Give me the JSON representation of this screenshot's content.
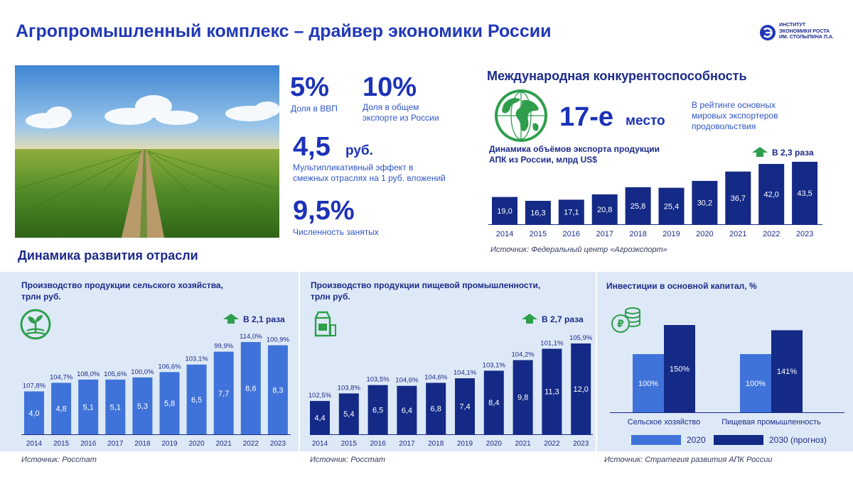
{
  "header": {
    "title": "Агропромышленный комплекс – драйвер экономики России",
    "logo_text": "ИНСТИТУТ\nЭКОНОМИКИ РОСТА\nИМ. СТОЛЫПИНА П.А."
  },
  "kpis": {
    "gdp_share": {
      "value": "5%",
      "caption": "Доля в ВВП"
    },
    "export_share": {
      "value": "10%",
      "caption": "Доля в общем\nэкспорте из России"
    },
    "multiplier": {
      "value": "4,5",
      "unit": "руб.",
      "caption": "Мультипликативный эффект в\nсмежных отраслях на 1 руб. вложений"
    },
    "employment": {
      "value": "9,5%",
      "caption": "Численность занятых"
    }
  },
  "international": {
    "title": "Международная конкурентоспособность",
    "rank_value": "17-е",
    "rank_word": "место",
    "rank_caption": "В рейтинге основных мировых экспортеров продовольствия"
  },
  "section_title": "Динамика развития отрасли",
  "colors": {
    "navy": "#142a86",
    "blue": "#3f73d9",
    "green": "#2e9e4c",
    "title_blue": "#2038b8",
    "panel": "#dde9f6"
  },
  "chart_data": [
    {
      "id": "export",
      "type": "bar",
      "title": "Динамика объёмов экспорта продукции\nАПК из России, млрд US$",
      "categories": [
        "2014",
        "2015",
        "2016",
        "2017",
        "2018",
        "2019",
        "2020",
        "2021",
        "2022",
        "2023"
      ],
      "values": [
        19.0,
        16.3,
        17.1,
        20.8,
        25.8,
        25.4,
        30.2,
        36.7,
        42.0,
        43.5
      ],
      "value_labels": [
        "19,0",
        "16,3",
        "17,1",
        "20,8",
        "25,8",
        "25,4",
        "30,2",
        "36,7",
        "42,0",
        "43,5"
      ],
      "growth_label": "В 2,3 раза",
      "source": "Источник: Федеральный центр «Агроэкспорт»",
      "color": "#142a86"
    },
    {
      "id": "agri",
      "type": "bar",
      "title": "Производство продукции сельского хозяйства,\nтрлн руб.",
      "categories": [
        "2014",
        "2015",
        "2016",
        "2017",
        "2018",
        "2019",
        "2020",
        "2021",
        "2022",
        "2023"
      ],
      "values": [
        4.0,
        4.8,
        5.1,
        5.1,
        5.3,
        5.8,
        6.5,
        7.7,
        8.6,
        8.3
      ],
      "value_labels": [
        "4,0",
        "4,8",
        "5,1",
        "5,1",
        "5,3",
        "5,8",
        "6,5",
        "7,7",
        "8,6",
        "8,3"
      ],
      "index_labels": [
        "107,8%",
        "104,7%",
        "108,0%",
        "105,6%",
        "100,0%",
        "106,6%",
        "103,1%",
        "99,9%",
        "114,0%",
        "100,9%"
      ],
      "growth_label": "В 2,1 раза",
      "source": "Источник: Росстат",
      "color": "#3f73d9"
    },
    {
      "id": "food",
      "type": "bar",
      "title": "Производство продукции пищевой промышленности,\nтрлн руб.",
      "categories": [
        "2014",
        "2015",
        "2016",
        "2017",
        "2018",
        "2019",
        "2020",
        "2021",
        "2022",
        "2023"
      ],
      "values": [
        4.4,
        5.4,
        6.5,
        6.4,
        6.8,
        7.4,
        8.4,
        9.8,
        11.3,
        12.0
      ],
      "value_labels": [
        "4,4",
        "5,4",
        "6,5",
        "6,4",
        "6,8",
        "7,4",
        "8,4",
        "9,8",
        "11,3",
        "12,0"
      ],
      "index_labels": [
        "102,5%",
        "103,8%",
        "103,5%",
        "104,6%",
        "104,6%",
        "104,1%",
        "103,1%",
        "104,2%",
        "101,1%",
        "105,9%"
      ],
      "growth_label": "В 2,7 раза",
      "source": "Источник: Росстат",
      "color": "#142a86"
    },
    {
      "id": "invest",
      "type": "bar",
      "title": "Инвестиции  в основной капитал, %",
      "categories": [
        "Сельское хозяйство",
        "Пищевая промышленность"
      ],
      "series": [
        {
          "name": "2020",
          "values": [
            100,
            100
          ],
          "labels": [
            "100%",
            "100%"
          ],
          "color": "#3f73d9"
        },
        {
          "name": "2030 (прогноз)",
          "values": [
            150,
            141
          ],
          "labels": [
            "150%",
            "141%"
          ],
          "color": "#142a86"
        }
      ],
      "source": "Источник: Стратегия развития АПК России"
    }
  ]
}
